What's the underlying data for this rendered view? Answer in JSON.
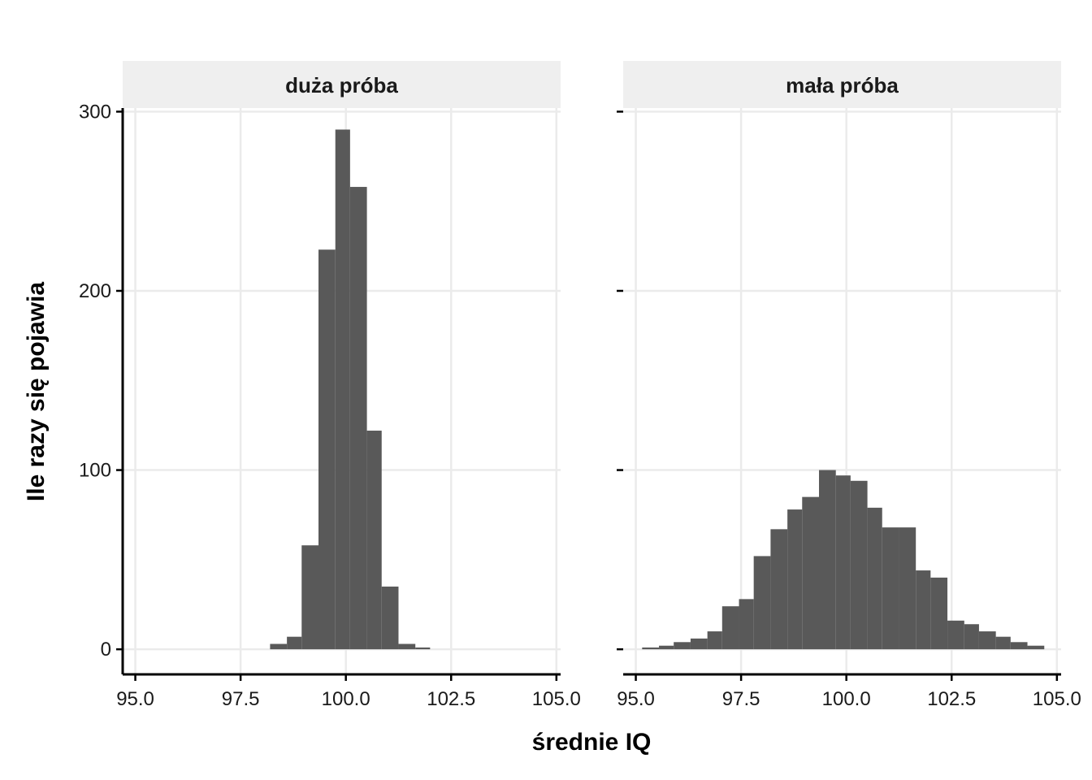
{
  "chart_data": {
    "type": "bar",
    "subtype": "faceted histogram",
    "xlabel": "średnie IQ",
    "ylabel": "Ile razy się pojawia",
    "xlim": [
      94.7,
      105.1
    ],
    "ylim": [
      -14,
      302
    ],
    "x_ticks": [
      95.0,
      97.5,
      100.0,
      102.5,
      105.0
    ],
    "x_tick_labels": [
      "95.0",
      "97.5",
      "100.0",
      "102.5",
      "105.0"
    ],
    "y_ticks": [
      0,
      100,
      200,
      300
    ],
    "y_tick_labels": [
      "0",
      "100",
      "200",
      "300"
    ],
    "grid": true,
    "bar_color": "#595959",
    "strip_color": "#efefef",
    "gridline_color": "#ebebeb",
    "panels": [
      {
        "label": "duża próba",
        "bins": [
          {
            "x0": 98.2,
            "x1": 98.6,
            "count": 3
          },
          {
            "x0": 98.6,
            "x1": 98.95,
            "count": 7
          },
          {
            "x0": 98.95,
            "x1": 99.35,
            "count": 58
          },
          {
            "x0": 99.35,
            "x1": 99.75,
            "count": 223
          },
          {
            "x0": 99.75,
            "x1": 100.1,
            "count": 290
          },
          {
            "x0": 100.1,
            "x1": 100.5,
            "count": 258
          },
          {
            "x0": 100.5,
            "x1": 100.85,
            "count": 122
          },
          {
            "x0": 100.85,
            "x1": 101.25,
            "count": 35
          },
          {
            "x0": 101.25,
            "x1": 101.65,
            "count": 3
          },
          {
            "x0": 101.65,
            "x1": 102.0,
            "count": 1
          }
        ]
      },
      {
        "label": "mała próba",
        "bins": [
          {
            "x0": 95.15,
            "x1": 95.55,
            "count": 1
          },
          {
            "x0": 95.55,
            "x1": 95.9,
            "count": 2
          },
          {
            "x0": 95.9,
            "x1": 96.3,
            "count": 4
          },
          {
            "x0": 96.3,
            "x1": 96.7,
            "count": 6
          },
          {
            "x0": 96.7,
            "x1": 97.05,
            "count": 10
          },
          {
            "x0": 97.05,
            "x1": 97.45,
            "count": 24
          },
          {
            "x0": 97.45,
            "x1": 97.8,
            "count": 28
          },
          {
            "x0": 97.8,
            "x1": 98.2,
            "count": 52
          },
          {
            "x0": 98.2,
            "x1": 98.6,
            "count": 67
          },
          {
            "x0": 98.6,
            "x1": 98.95,
            "count": 78
          },
          {
            "x0": 98.95,
            "x1": 99.35,
            "count": 85
          },
          {
            "x0": 99.35,
            "x1": 99.75,
            "count": 100
          },
          {
            "x0": 99.75,
            "x1": 100.1,
            "count": 97
          },
          {
            "x0": 100.1,
            "x1": 100.5,
            "count": 94
          },
          {
            "x0": 100.5,
            "x1": 100.85,
            "count": 79
          },
          {
            "x0": 100.85,
            "x1": 101.25,
            "count": 68
          },
          {
            "x0": 101.25,
            "x1": 101.65,
            "count": 68
          },
          {
            "x0": 101.65,
            "x1": 102.0,
            "count": 44
          },
          {
            "x0": 102.0,
            "x1": 102.4,
            "count": 40
          },
          {
            "x0": 102.4,
            "x1": 102.8,
            "count": 16
          },
          {
            "x0": 102.8,
            "x1": 103.15,
            "count": 14
          },
          {
            "x0": 103.15,
            "x1": 103.55,
            "count": 10
          },
          {
            "x0": 103.55,
            "x1": 103.9,
            "count": 7
          },
          {
            "x0": 103.9,
            "x1": 104.3,
            "count": 4
          },
          {
            "x0": 104.3,
            "x1": 104.7,
            "count": 2
          }
        ]
      }
    ]
  }
}
